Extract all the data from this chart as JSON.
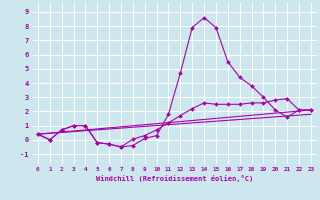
{
  "xlabel": "Windchill (Refroidissement éolien,°C)",
  "xlim": [
    -0.5,
    23.5
  ],
  "ylim": [
    -1.7,
    9.7
  ],
  "xticks": [
    0,
    1,
    2,
    3,
    4,
    5,
    6,
    7,
    8,
    9,
    10,
    11,
    12,
    13,
    14,
    15,
    16,
    17,
    18,
    19,
    20,
    21,
    22,
    23
  ],
  "yticks": [
    -1,
    0,
    1,
    2,
    3,
    4,
    5,
    6,
    7,
    8,
    9
  ],
  "bg_color": "#cce8ee",
  "grid_color": "#ffffff",
  "line_color": "#aa00aa",
  "series": {
    "line1_x": [
      0,
      1,
      2,
      3,
      4,
      5,
      6,
      7,
      8,
      9,
      10,
      11,
      12,
      13,
      14,
      15,
      16,
      17,
      18,
      19,
      20,
      21,
      22,
      23
    ],
    "line1_y": [
      0.4,
      0.0,
      0.7,
      1.0,
      1.0,
      -0.2,
      -0.3,
      -0.5,
      -0.4,
      0.1,
      0.3,
      1.8,
      4.7,
      7.9,
      8.6,
      7.9,
      5.5,
      4.4,
      3.8,
      3.0,
      2.1,
      1.6,
      2.1,
      2.1
    ],
    "line2_x": [
      0,
      1,
      2,
      3,
      4,
      5,
      6,
      7,
      8,
      9,
      10,
      11,
      12,
      13,
      14,
      15,
      16,
      17,
      18,
      19,
      20,
      21,
      22,
      23
    ],
    "line2_y": [
      0.4,
      0.0,
      0.7,
      1.0,
      1.0,
      -0.2,
      -0.3,
      -0.5,
      0.05,
      0.3,
      0.7,
      1.2,
      1.7,
      2.2,
      2.6,
      2.5,
      2.5,
      2.5,
      2.6,
      2.6,
      2.8,
      2.9,
      2.1,
      2.1
    ],
    "line3_x": [
      0,
      23
    ],
    "line3_y": [
      0.4,
      2.1
    ],
    "line4_x": [
      0,
      23
    ],
    "line4_y": [
      0.4,
      1.8
    ]
  }
}
